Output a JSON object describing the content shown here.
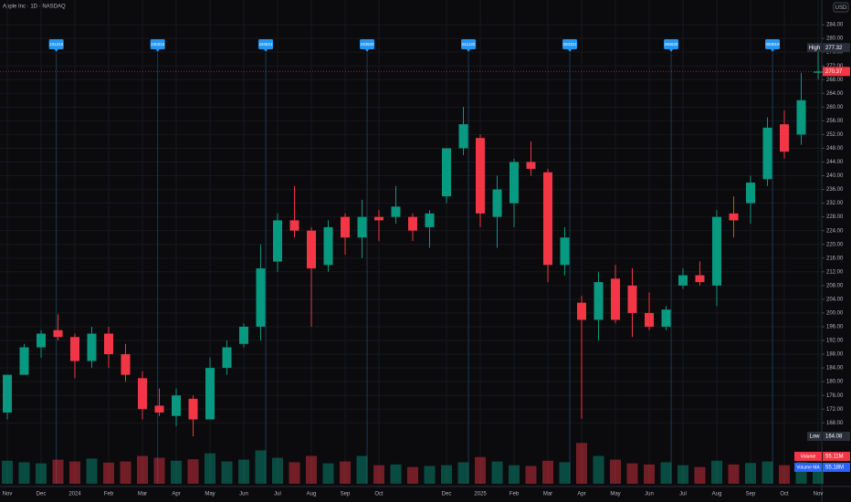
{
  "chart_data": {
    "type": "candlestick",
    "title": "Apple Inc · 1D · NASDAQ",
    "currency": "USD",
    "categories": [
      "Nov",
      null,
      "Dec",
      null,
      "2024",
      null,
      "Feb",
      null,
      "Mar",
      null,
      "Apr",
      null,
      "May",
      null,
      "Jun",
      null,
      "Jul",
      null,
      "Aug",
      null,
      "Sep",
      null,
      "Oct",
      null,
      null,
      null,
      "Dec",
      null,
      "2025",
      null,
      "Feb",
      null,
      "Mar",
      null,
      "Apr",
      null,
      "May",
      null,
      "Jun",
      null,
      "Jul",
      null,
      "Aug",
      null,
      "Sep",
      null,
      "Oct",
      null,
      "Nov"
    ],
    "open": [
      171,
      182,
      190,
      195,
      193,
      186,
      194,
      188,
      181,
      173,
      170,
      175,
      169,
      184,
      191,
      196,
      215,
      227,
      224,
      214,
      228,
      222,
      228,
      228,
      228,
      225,
      234,
      248,
      251,
      228,
      232,
      244,
      241,
      214,
      203,
      198,
      210,
      208,
      200,
      196,
      208,
      211,
      208,
      229,
      232,
      239,
      255,
      252,
      270
    ],
    "high": [
      182,
      191,
      195,
      199.6,
      194,
      196,
      196,
      191,
      183,
      178,
      178,
      176,
      187,
      192,
      197,
      220,
      229,
      237,
      225,
      227,
      229,
      233,
      230,
      237,
      229,
      230,
      248,
      260.1,
      252,
      240,
      245,
      250,
      242,
      225,
      205,
      212,
      214,
      213,
      206,
      202,
      213,
      215,
      230,
      234,
      240,
      257,
      259,
      270,
      277.32
    ],
    "low": [
      169,
      182,
      187,
      192,
      181,
      184,
      184,
      180,
      169,
      170,
      167,
      164.08,
      169,
      182,
      190,
      192,
      212,
      222,
      196,
      212,
      217,
      216,
      221,
      226,
      221,
      219,
      232,
      246,
      225,
      219,
      225,
      240,
      209,
      211,
      169.2,
      192,
      197,
      193,
      195,
      195,
      207,
      208,
      202,
      222,
      226,
      237,
      245,
      249,
      268
    ],
    "close": [
      182,
      190,
      194,
      193,
      186,
      194,
      188,
      182,
      172,
      171,
      176,
      169,
      184,
      190,
      196,
      213,
      227,
      224,
      213,
      225,
      222,
      228,
      227,
      231,
      224,
      229,
      248,
      255,
      229,
      236,
      244,
      242,
      214,
      222,
      198,
      209,
      198,
      200,
      196,
      201,
      211,
      209,
      228,
      227,
      238,
      254,
      247,
      262,
      270.37
    ],
    "up_color": "#089981",
    "down_color": "#f23645",
    "ylim": [
      150.25,
      291.2
    ],
    "yticks": [
      {
        "value": 168,
        "label": "168.00"
      },
      {
        "value": 172,
        "label": "172.00"
      },
      {
        "value": 176,
        "label": "176.00"
      },
      {
        "value": 180,
        "label": "180.00"
      },
      {
        "value": 184,
        "label": "184.00"
      },
      {
        "value": 188,
        "label": "188.00"
      },
      {
        "value": 192,
        "label": "192.00"
      },
      {
        "value": 196,
        "label": "196.00"
      },
      {
        "value": 200,
        "label": "200.00"
      },
      {
        "value": 204,
        "label": "204.00"
      },
      {
        "value": 208,
        "label": "208.00"
      },
      {
        "value": 212,
        "label": "212.00"
      },
      {
        "value": 216,
        "label": "216.00"
      },
      {
        "value": 220,
        "label": "220.00"
      },
      {
        "value": 224,
        "label": "224.00"
      },
      {
        "value": 228,
        "label": "228.00"
      },
      {
        "value": 232,
        "label": "232.00"
      },
      {
        "value": 236,
        "label": "236.00"
      },
      {
        "value": 240,
        "label": "240.00"
      },
      {
        "value": 244,
        "label": "244.00"
      },
      {
        "value": 248,
        "label": "248.00"
      },
      {
        "value": 252,
        "label": "252.00"
      },
      {
        "value": 256,
        "label": "256.00"
      },
      {
        "value": 260,
        "label": "260.00"
      },
      {
        "value": 264,
        "label": "264.00"
      },
      {
        "value": 268,
        "label": "268.00"
      },
      {
        "value": 272,
        "label": "272.00"
      },
      {
        "value": 276,
        "label": "276.00"
      },
      {
        "value": 280,
        "label": "280.00"
      },
      {
        "value": 284,
        "label": "284.00"
      }
    ],
    "grid": true,
    "series": [
      {
        "name": "Volume",
        "axis": "y2",
        "values": [
          62,
          58,
          55,
          65,
          60,
          68,
          57,
          60,
          75,
          70,
          62,
          66,
          82,
          60,
          65,
          90,
          70,
          58,
          75,
          55,
          60,
          75,
          50,
          52,
          45,
          48,
          50,
          58,
          72,
          60,
          50,
          48,
          62,
          58,
          110,
          75,
          65,
          55,
          52,
          58,
          50,
          45,
          62,
          52,
          56,
          60,
          50,
          58,
          52
        ]
      }
    ],
    "y2lim": [
      0,
      320
    ],
    "price_tags": [
      {
        "label": "High",
        "value": 277.32,
        "color": "#2a2e39"
      },
      {
        "label": null,
        "value": 270.37,
        "color": "#f23645"
      },
      {
        "label": "Low",
        "value": 164.08,
        "color": "#2a2e39"
      }
    ],
    "volume_tags": [
      {
        "label": "Volume",
        "text": "55.11M",
        "color": "#f23645"
      },
      {
        "label": "Volume MA",
        "text": "55.18M",
        "color": "#2962ff"
      }
    ],
    "markers": {
      "color": "#2196f3",
      "x": [
        2.9,
        8.9,
        15.3,
        21.3,
        27.3,
        33.3,
        39.3,
        45.3
      ],
      "labels": [
        "231215",
        "240315",
        "240621",
        "240920",
        "241220",
        "250321",
        "250620",
        "250919"
      ]
    }
  }
}
